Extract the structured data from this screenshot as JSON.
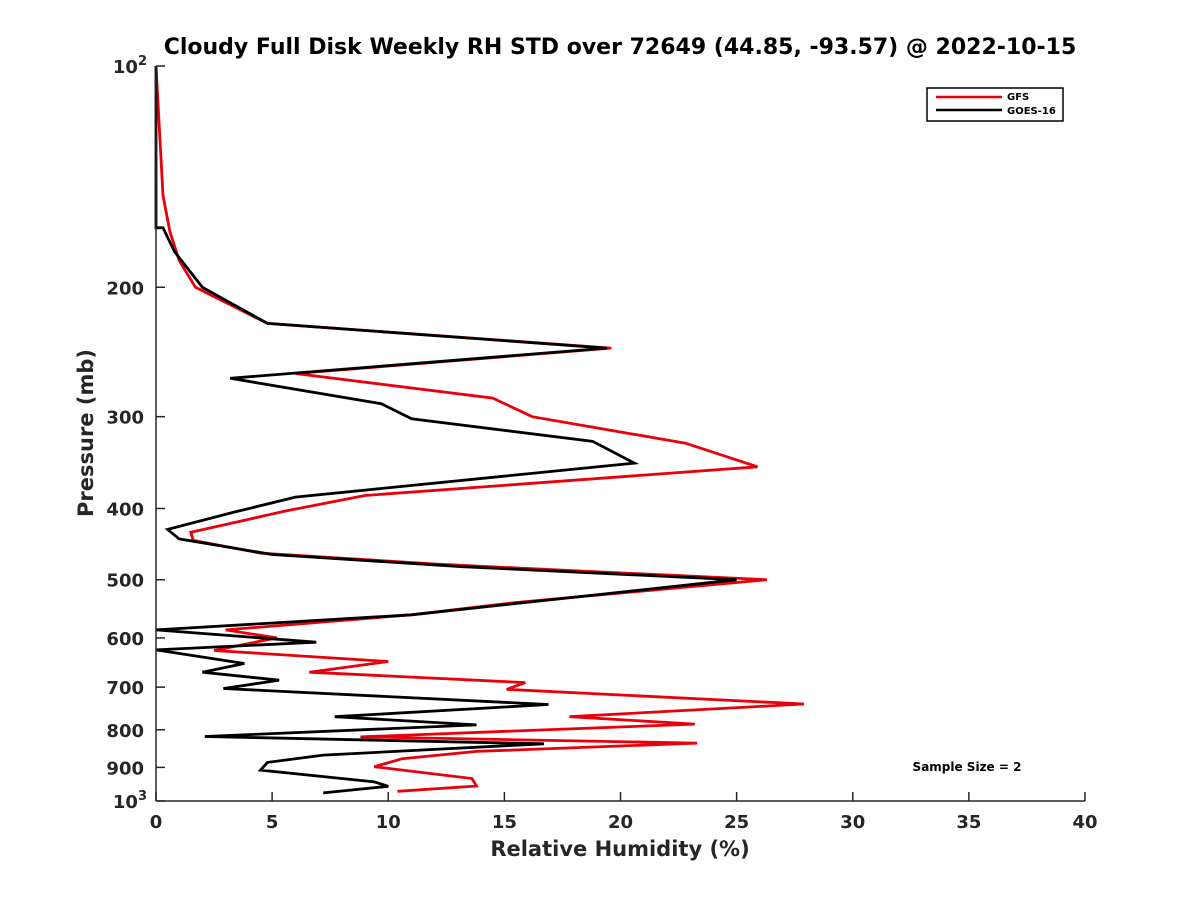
{
  "chart_data": {
    "type": "line",
    "title": "Cloudy Full Disk Weekly RH STD over 72649 (44.85, -93.57) @ 2022-10-15",
    "xlabel": "Relative Humidity (%)",
    "ylabel": "Pressure (mb)",
    "xlim": [
      0,
      40
    ],
    "ylim": [
      100,
      1000
    ],
    "yscale": "log",
    "y_reversed": true,
    "grid": false,
    "legend_position": "top-right",
    "xticks": [
      "0",
      "5",
      "10",
      "15",
      "20",
      "25",
      "30",
      "35",
      "40"
    ],
    "yticks": [
      {
        "value": 100,
        "base": "10",
        "exp": "2"
      },
      {
        "value": 200,
        "label": "200"
      },
      {
        "value": 300,
        "label": "300"
      },
      {
        "value": 400,
        "label": "400"
      },
      {
        "value": 500,
        "label": "500"
      },
      {
        "value": 600,
        "label": "600"
      },
      {
        "value": 700,
        "label": "700"
      },
      {
        "value": 800,
        "label": "800"
      },
      {
        "value": 900,
        "label": "900"
      },
      {
        "value": 1000,
        "base": "10",
        "exp": "3"
      }
    ],
    "annotation": "Sample Size = 2",
    "series": [
      {
        "name": "GFS",
        "color": "#e8000b",
        "points": [
          [
            0.0,
            100
          ],
          [
            0.3,
            150
          ],
          [
            0.6,
            168
          ],
          [
            1.0,
            184
          ],
          [
            1.7,
            200
          ],
          [
            4.8,
            224
          ],
          [
            19.6,
            242
          ],
          [
            6.0,
            262
          ],
          [
            14.5,
            283
          ],
          [
            16.2,
            300
          ],
          [
            22.8,
            326
          ],
          [
            25.9,
            351
          ],
          [
            9.0,
            384
          ],
          [
            5.6,
            403
          ],
          [
            1.5,
            431
          ],
          [
            1.6,
            442
          ],
          [
            4.5,
            460
          ],
          [
            12.0,
            476
          ],
          [
            18.5,
            487
          ],
          [
            26.3,
            500
          ],
          [
            15.5,
            537
          ],
          [
            11.0,
            558
          ],
          [
            3.0,
            585
          ],
          [
            5.2,
            600
          ],
          [
            2.5,
            624
          ],
          [
            10.0,
            646
          ],
          [
            6.6,
            668
          ],
          [
            15.9,
            690
          ],
          [
            15.1,
            705
          ],
          [
            27.9,
            738
          ],
          [
            17.8,
            768
          ],
          [
            23.2,
            786
          ],
          [
            8.8,
            818
          ],
          [
            23.3,
            834
          ],
          [
            13.8,
            856
          ],
          [
            10.6,
            876
          ],
          [
            9.4,
            898
          ],
          [
            13.6,
            932
          ],
          [
            13.8,
            954
          ],
          [
            10.4,
            970
          ]
        ]
      },
      {
        "name": "GOES-16",
        "color": "#000000",
        "points": [
          [
            0.0,
            100
          ],
          [
            0.0,
            166
          ],
          [
            0.3,
            166
          ],
          [
            0.8,
            179
          ],
          [
            2.0,
            200
          ],
          [
            4.8,
            224
          ],
          [
            19.4,
            242
          ],
          [
            3.2,
            266
          ],
          [
            9.7,
            288
          ],
          [
            11.0,
            302
          ],
          [
            18.8,
            324
          ],
          [
            20.6,
            347
          ],
          [
            6.0,
            386
          ],
          [
            3.3,
            405
          ],
          [
            0.5,
            427
          ],
          [
            1.0,
            440
          ],
          [
            5.0,
            462
          ],
          [
            13.2,
            480
          ],
          [
            25.0,
            500
          ],
          [
            11.0,
            558
          ],
          [
            0.0,
            585
          ],
          [
            6.9,
            608
          ],
          [
            0.0,
            623
          ],
          [
            3.8,
            650
          ],
          [
            2.0,
            668
          ],
          [
            5.3,
            685
          ],
          [
            2.9,
            703
          ],
          [
            16.9,
            739
          ],
          [
            7.7,
            768
          ],
          [
            13.8,
            788
          ],
          [
            2.1,
            817
          ],
          [
            16.7,
            836
          ],
          [
            7.2,
            866
          ],
          [
            4.8,
            886
          ],
          [
            4.5,
            908
          ],
          [
            9.4,
            942
          ],
          [
            10.0,
            955
          ],
          [
            7.2,
            975
          ]
        ]
      }
    ]
  }
}
